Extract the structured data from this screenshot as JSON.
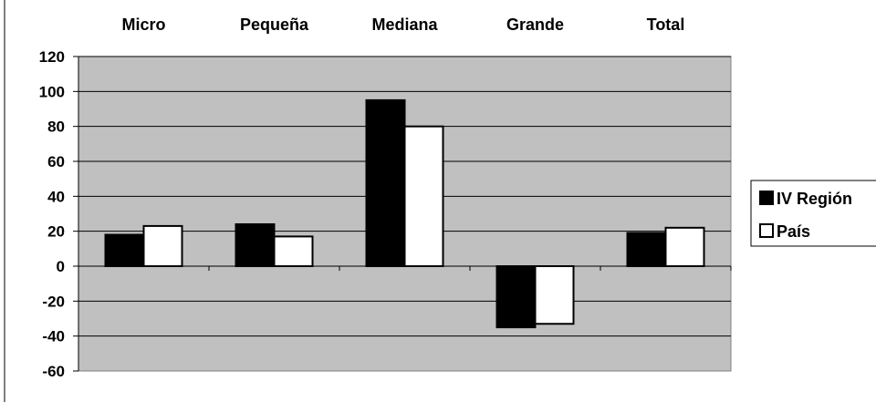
{
  "chart_data": {
    "type": "bar",
    "categories": [
      "Micro",
      "Pequeña",
      "Mediana",
      "Grande",
      "Total"
    ],
    "series": [
      {
        "name": "IV Región",
        "color": "#000000",
        "values": [
          18,
          24,
          95,
          -35,
          19
        ]
      },
      {
        "name": "País",
        "color": "#ffffff",
        "values": [
          23,
          17,
          80,
          -33,
          22
        ]
      }
    ],
    "ylim": [
      -60,
      120
    ],
    "yticks": [
      120,
      100,
      80,
      60,
      40,
      20,
      0,
      -20,
      -40,
      -60
    ],
    "grid": true,
    "plot_background": "#c0c0c0",
    "category_labels_position": "top",
    "legend_position": "right",
    "title": "",
    "xlabel": "",
    "ylabel": ""
  }
}
